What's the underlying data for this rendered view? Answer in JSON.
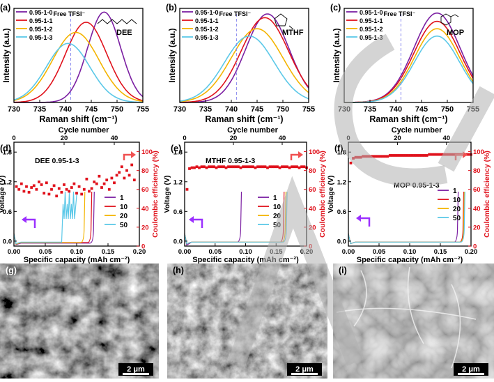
{
  "colors": {
    "s0": "#7b1fa2",
    "s1": "#e0121c",
    "s2": "#f4b400",
    "s3": "#5bc8e8",
    "ce": "#e0121c",
    "arrow_ce": "#f05050",
    "arrow_v": "#9b30ff",
    "dash": "#8888ee"
  },
  "raman": {
    "xlabel": "Raman shift (cm⁻¹)",
    "ylabel": "Intensity (a.u.)",
    "xticks": [
      "730",
      "735",
      "740",
      "745",
      "750",
      "755"
    ],
    "free_label": "Free TFSI⁻",
    "legend": [
      "0.95-1-0",
      "0.95-1-1",
      "0.95-1-2",
      "0.95-1-3"
    ]
  },
  "cycling": {
    "xlabel": "Specific capacity (mAh cm⁻²)",
    "ylabel_left": "Voltage (V)",
    "ylabel_right": "Coulombic efficiency (%)",
    "top_label": "Cycle number",
    "xticks": [
      "0.00",
      "0.05",
      "0.10",
      "0.15",
      "0.20"
    ],
    "yticks_left": [
      "0.0",
      "0.6",
      "1.2",
      "1.8"
    ],
    "yticks_right": [
      "0",
      "20",
      "40",
      "60",
      "80",
      "100"
    ],
    "top_ticks": [
      "0",
      "20",
      "40"
    ],
    "legend": [
      "1",
      "10",
      "20",
      "50"
    ]
  },
  "sem": {
    "scalebar": "2 μm"
  },
  "chart_data": [
    {
      "type": "line",
      "panel_label": "(a)",
      "solvent": "DEE",
      "xlabel": "Raman shift (cm⁻¹)",
      "ylabel": "Intensity (a.u.)",
      "xlim": [
        730,
        755
      ],
      "free_tfsi_x": 741,
      "series": [
        {
          "name": "0.95-1-0",
          "center": 747.5,
          "width": 3.2,
          "height": 0.98
        },
        {
          "name": "0.95-1-1",
          "center": 744.0,
          "width": 4.0,
          "height": 0.87
        },
        {
          "name": "0.95-1-2",
          "center": 742.0,
          "width": 4.5,
          "height": 0.76
        },
        {
          "name": "0.95-1-3",
          "center": 740.5,
          "width": 4.2,
          "height": 0.64
        }
      ]
    },
    {
      "type": "line",
      "panel_label": "(b)",
      "solvent": "MTHF",
      "xlabel": "Raman shift (cm⁻¹)",
      "ylabel": "Intensity (a.u.)",
      "xlim": [
        730,
        755
      ],
      "free_tfsi_x": 741,
      "series": [
        {
          "name": "0.95-1-0",
          "center": 747.0,
          "width": 4.2,
          "height": 0.96
        },
        {
          "name": "0.95-1-1",
          "center": 746.5,
          "width": 4.6,
          "height": 0.92
        },
        {
          "name": "0.95-1-2",
          "center": 745.0,
          "width": 5.0,
          "height": 0.8
        },
        {
          "name": "0.95-1-3",
          "center": 743.5,
          "width": 4.8,
          "height": 0.72
        }
      ]
    },
    {
      "type": "line",
      "panel_label": "(c)",
      "solvent": "MOP",
      "xlabel": "Raman shift (cm⁻¹)",
      "ylabel": "Intensity (a.u.)",
      "xlim": [
        730,
        755
      ],
      "free_tfsi_x": 741,
      "series": [
        {
          "name": "0.95-1-0",
          "center": 748.0,
          "width": 4.5,
          "height": 0.97
        },
        {
          "name": "0.95-1-1",
          "center": 748.0,
          "width": 4.5,
          "height": 0.88
        },
        {
          "name": "0.95-1-2",
          "center": 748.0,
          "width": 4.4,
          "height": 0.8
        },
        {
          "name": "0.95-1-3",
          "center": 748.0,
          "width": 4.4,
          "height": 0.72
        }
      ]
    },
    {
      "type": "line",
      "panel_label": "(d)",
      "electrolyte": "DEE 0.95-1-3",
      "xlabel": "Specific capacity (mAh cm⁻²)",
      "ylabel": "Voltage (V)",
      "y2label": "Coulombic efficiency (%)",
      "xlim": [
        0,
        0.2
      ],
      "ylim": [
        -0.1,
        2.0
      ],
      "y2lim": [
        0,
        110
      ],
      "cycle_lim": [
        0,
        50
      ],
      "ce_points": [
        [
          1,
          63
        ],
        [
          2,
          60
        ],
        [
          3,
          66
        ],
        [
          4,
          58
        ],
        [
          5,
          63
        ],
        [
          6,
          57
        ],
        [
          7,
          62
        ],
        [
          8,
          64
        ],
        [
          9,
          60
        ],
        [
          10,
          68
        ],
        [
          11,
          65
        ],
        [
          12,
          56
        ],
        [
          13,
          67
        ],
        [
          14,
          55
        ],
        [
          15,
          60
        ],
        [
          16,
          64
        ],
        [
          17,
          53
        ],
        [
          18,
          61
        ],
        [
          19,
          57
        ],
        [
          20,
          65
        ],
        [
          21,
          60
        ],
        [
          22,
          58
        ],
        [
          23,
          62
        ],
        [
          24,
          66
        ],
        [
          25,
          56
        ],
        [
          26,
          63
        ],
        [
          27,
          55
        ],
        [
          28,
          60
        ],
        [
          29,
          71
        ],
        [
          30,
          58
        ],
        [
          31,
          61
        ],
        [
          32,
          68
        ],
        [
          33,
          66
        ],
        [
          34,
          74
        ],
        [
          35,
          62
        ],
        [
          36,
          66
        ],
        [
          37,
          70
        ],
        [
          38,
          60
        ],
        [
          39,
          72
        ],
        [
          40,
          67
        ],
        [
          41,
          75
        ],
        [
          42,
          78
        ],
        [
          43,
          84
        ],
        [
          44,
          72
        ],
        [
          45,
          80
        ],
        [
          46,
          75
        ],
        [
          47,
          86
        ],
        [
          48,
          70
        ]
      ],
      "voltage_curves": [
        {
          "cycle": "1",
          "q_rise": 0.127,
          "v_plateau": -0.04,
          "v_end": 1.0
        },
        {
          "cycle": "10",
          "q_rise": 0.123,
          "v_plateau": -0.03,
          "v_end": 1.0
        },
        {
          "cycle": "20",
          "q_rise": 0.112,
          "v_plateau": -0.03,
          "v_end": 1.0
        },
        {
          "cycle": "50",
          "q_rise": 0.085,
          "v_plateau": -0.02,
          "v_end": 1.0,
          "fluctuating": true
        }
      ]
    },
    {
      "type": "line",
      "panel_label": "(e)",
      "electrolyte": "MTHF 0.95-1-3",
      "xlabel": "Specific capacity (mAh cm⁻²)",
      "ylabel": "Voltage (V)",
      "y2label": "Coulombic efficiency (%)",
      "xlim": [
        0,
        0.2
      ],
      "ylim": [
        -0.1,
        2.0
      ],
      "y2lim": [
        0,
        110
      ],
      "cycle_lim": [
        0,
        50
      ],
      "ce_points": [
        [
          1,
          60
        ],
        [
          2,
          82
        ],
        [
          3,
          83
        ],
        [
          4,
          83
        ],
        [
          5,
          84
        ],
        [
          6,
          83
        ],
        [
          7,
          84
        ],
        [
          8,
          84
        ],
        [
          9,
          83
        ],
        [
          10,
          84
        ],
        [
          11,
          84
        ],
        [
          12,
          84
        ],
        [
          13,
          83
        ],
        [
          14,
          84
        ],
        [
          15,
          84
        ],
        [
          16,
          84
        ],
        [
          17,
          83
        ],
        [
          18,
          84
        ],
        [
          19,
          84
        ],
        [
          20,
          84
        ],
        [
          21,
          84
        ],
        [
          22,
          84
        ],
        [
          23,
          83
        ],
        [
          24,
          84
        ],
        [
          25,
          84
        ],
        [
          26,
          84
        ],
        [
          27,
          84
        ],
        [
          28,
          84
        ],
        [
          29,
          83
        ],
        [
          30,
          84
        ],
        [
          31,
          84
        ],
        [
          32,
          84
        ],
        [
          33,
          84
        ],
        [
          34,
          83
        ],
        [
          35,
          84
        ],
        [
          36,
          84
        ],
        [
          37,
          84
        ],
        [
          38,
          84
        ],
        [
          39,
          83
        ],
        [
          40,
          84
        ],
        [
          41,
          84
        ],
        [
          42,
          84
        ],
        [
          43,
          83
        ],
        [
          44,
          84
        ],
        [
          45,
          84
        ],
        [
          46,
          84
        ],
        [
          47,
          83
        ],
        [
          48,
          84
        ],
        [
          49,
          84
        ],
        [
          50,
          83
        ]
      ],
      "voltage_curves": [
        {
          "cycle": "1",
          "q_rise": 0.092,
          "v_plateau": -0.02,
          "v_end": 1.0,
          "initial_dip": -0.08
        },
        {
          "cycle": "10",
          "q_rise": 0.162,
          "v_plateau": -0.02,
          "v_end": 1.0
        },
        {
          "cycle": "20",
          "q_rise": 0.165,
          "v_plateau": -0.02,
          "v_end": 1.0
        },
        {
          "cycle": "50",
          "q_rise": 0.167,
          "v_plateau": -0.02,
          "v_end": 1.0
        }
      ]
    },
    {
      "type": "line",
      "panel_label": "(f)",
      "electrolyte": "MOP 0.95-1-3",
      "xlabel": "Specific capacity (mAh cm⁻²)",
      "ylabel": "Voltage (V)",
      "y2label": "Coulombic efficiency (%)",
      "xlim": [
        0,
        0.2
      ],
      "ylim": [
        -0.1,
        2.0
      ],
      "y2lim": [
        0,
        110
      ],
      "cycle_lim": [
        0,
        50
      ],
      "ce_points": [
        [
          1,
          88
        ],
        [
          2,
          93
        ],
        [
          3,
          94
        ],
        [
          4,
          94
        ],
        [
          5,
          94
        ],
        [
          6,
          95
        ],
        [
          7,
          95
        ],
        [
          8,
          95
        ],
        [
          9,
          95
        ],
        [
          10,
          95
        ],
        [
          11,
          95
        ],
        [
          12,
          95
        ],
        [
          13,
          95
        ],
        [
          14,
          95
        ],
        [
          15,
          95
        ],
        [
          16,
          95
        ],
        [
          17,
          96
        ],
        [
          18,
          96
        ],
        [
          19,
          96
        ],
        [
          20,
          96
        ],
        [
          21,
          96
        ],
        [
          22,
          96
        ],
        [
          23,
          96
        ],
        [
          24,
          96
        ],
        [
          25,
          96
        ],
        [
          26,
          96
        ],
        [
          27,
          96
        ],
        [
          28,
          96
        ],
        [
          29,
          96
        ],
        [
          30,
          96
        ],
        [
          31,
          96
        ],
        [
          32,
          96
        ],
        [
          33,
          97
        ],
        [
          34,
          97
        ],
        [
          35,
          97
        ],
        [
          36,
          97
        ],
        [
          37,
          97
        ],
        [
          38,
          97
        ],
        [
          39,
          97
        ],
        [
          40,
          97
        ],
        [
          41,
          97
        ],
        [
          42,
          97
        ],
        [
          43,
          97
        ],
        [
          44,
          97
        ],
        [
          45,
          97
        ],
        [
          46,
          97
        ],
        [
          47,
          97
        ],
        [
          48,
          97
        ],
        [
          49,
          97
        ],
        [
          50,
          97
        ]
      ],
      "voltage_curves": [
        {
          "cycle": "1",
          "q_rise": 0.178,
          "v_plateau": -0.02,
          "v_end": 1.0
        },
        {
          "cycle": "10",
          "q_rise": 0.187,
          "v_plateau": -0.02,
          "v_end": 1.0
        },
        {
          "cycle": "20",
          "q_rise": 0.188,
          "v_plateau": -0.02,
          "v_end": 1.0
        },
        {
          "cycle": "50",
          "q_rise": 0.189,
          "v_plateau": -0.02,
          "v_end": 1.0
        }
      ]
    },
    {
      "type": "image",
      "panel_label": "(g)"
    },
    {
      "type": "image",
      "panel_label": "(h)"
    },
    {
      "type": "image",
      "panel_label": "(i)"
    }
  ]
}
